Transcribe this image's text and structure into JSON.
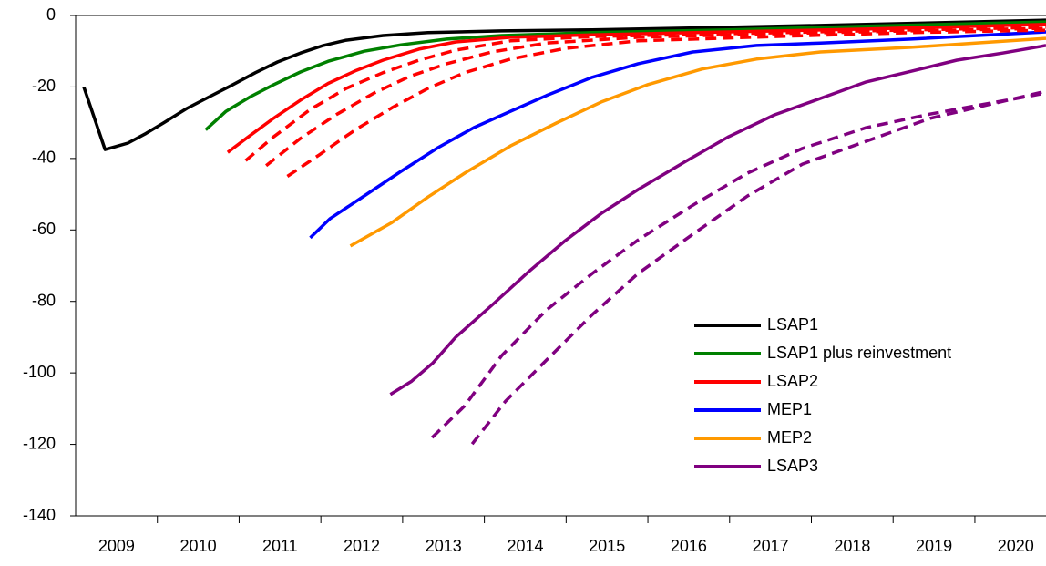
{
  "chart_data": {
    "type": "line",
    "xlim": [
      2009,
      2020.87
    ],
    "ylim": [
      -140,
      0
    ],
    "yticks": [
      -140,
      -120,
      -100,
      -80,
      -60,
      -40,
      -20,
      0
    ],
    "xticks": [
      {
        "value": 2009.5,
        "label": "2009"
      },
      {
        "value": 2010.5,
        "label": "2010"
      },
      {
        "value": 2011.5,
        "label": "2011"
      },
      {
        "value": 2012.5,
        "label": "2012"
      },
      {
        "value": 2013.5,
        "label": "2013"
      },
      {
        "value": 2014.5,
        "label": "2014"
      },
      {
        "value": 2015.5,
        "label": "2015"
      },
      {
        "value": 2016.5,
        "label": "2016"
      },
      {
        "value": 2017.5,
        "label": "2017"
      },
      {
        "value": 2018.5,
        "label": "2018"
      },
      {
        "value": 2019.5,
        "label": "2019"
      },
      {
        "value": 2020.5,
        "label": "2020"
      }
    ],
    "grid": false,
    "legend": "lower right",
    "series": [
      {
        "name": "LSAP1",
        "color": "#000000",
        "x": [
          2009.1,
          2009.36,
          2009.64,
          2009.86,
          2010.08,
          2010.36,
          2010.64,
          2010.92,
          2011.2,
          2011.47,
          2011.75,
          2012.03,
          2012.31,
          2012.76,
          2013.31,
          2014.21,
          2015.32,
          2016.99,
          2018.67,
          2020.87
        ],
        "values": [
          -20,
          -37.5,
          -35.7,
          -33,
          -30,
          -26,
          -22.7,
          -19.4,
          -16,
          -13,
          -10.5,
          -8.4,
          -6.9,
          -5.6,
          -4.8,
          -4.3,
          -4,
          -3.3,
          -2.5,
          -1.3
        ]
      },
      {
        "name": "LSAP1 plus reinvestment",
        "color": "#008000",
        "x": [
          2010.59,
          2010.84,
          2011.14,
          2011.42,
          2011.75,
          2012.09,
          2012.53,
          2012.98,
          2013.54,
          2014.21,
          2015.32,
          2016.99,
          2018.67,
          2020.87
        ],
        "values": [
          -32,
          -26.8,
          -22.7,
          -19.4,
          -15.8,
          -12.8,
          -10,
          -8.2,
          -6.6,
          -5.6,
          -4.8,
          -4,
          -3,
          -1.8
        ]
      },
      {
        "name": "LSAP2",
        "color": "#ff0000",
        "x": [
          2010.86,
          2011.11,
          2011.42,
          2011.75,
          2012.09,
          2012.42,
          2012.76,
          2013.2,
          2013.65,
          2014.32,
          2015.32,
          2016.99,
          2018.67,
          2020.87
        ],
        "values": [
          -38.3,
          -34,
          -28.8,
          -23.7,
          -19,
          -15.5,
          -12.5,
          -9.4,
          -7.4,
          -6.1,
          -5.4,
          -4.6,
          -3.8,
          -2.5
        ]
      },
      {
        "name": "MEP1",
        "color": "#0000ff",
        "x": [
          2011.87,
          2012.11,
          2012.53,
          2012.98,
          2013.43,
          2013.87,
          2014.32,
          2014.76,
          2015.32,
          2015.88,
          2016.55,
          2017.33,
          2018.11,
          2019.22,
          2020.87
        ],
        "values": [
          -62.2,
          -56.9,
          -50.5,
          -43.6,
          -37,
          -31.4,
          -26.8,
          -22.4,
          -17.3,
          -13.5,
          -10.2,
          -8.4,
          -7.7,
          -6.6,
          -4.6
        ]
      },
      {
        "name": "MEP2",
        "color": "#ff9900",
        "x": [
          2012.36,
          2012.87,
          2013.31,
          2013.76,
          2014.32,
          2014.88,
          2015.43,
          2015.99,
          2016.66,
          2017.33,
          2018.11,
          2019.22,
          2020.87
        ],
        "values": [
          -64.5,
          -57.9,
          -50.8,
          -44.1,
          -36.5,
          -30.1,
          -24.2,
          -19.4,
          -15,
          -12.2,
          -10.2,
          -8.9,
          -6.4
        ]
      },
      {
        "name": "LSAP3",
        "color": "#800080",
        "x": [
          2012.85,
          2013.11,
          2013.37,
          2013.65,
          2014.09,
          2014.54,
          2014.99,
          2015.43,
          2015.88,
          2016.44,
          2016.99,
          2017.55,
          2018.11,
          2018.67,
          2019.22,
          2019.78,
          2020.34,
          2020.87
        ],
        "values": [
          -106,
          -102.3,
          -97.2,
          -90,
          -81.1,
          -71.7,
          -63,
          -55.4,
          -48.7,
          -41.1,
          -33.9,
          -27.8,
          -23.2,
          -18.6,
          -15.6,
          -12.5,
          -10.5,
          -8.4
        ]
      },
      {
        "color": "#ff0000",
        "dashed": true,
        "x": [
          2011.08,
          2011.42,
          2011.87,
          2012.31,
          2012.76,
          2013.2,
          2013.65,
          2014.32,
          2015.32,
          2016.99,
          2018.67,
          2020.87
        ],
        "values": [
          -40.6,
          -34,
          -26.3,
          -20.4,
          -16,
          -12.5,
          -9.7,
          -7.1,
          -5.9,
          -5.1,
          -4.3,
          -3.3
        ]
      },
      {
        "color": "#ff0000",
        "dashed": true,
        "x": [
          2011.33,
          2011.75,
          2012.2,
          2012.65,
          2013.09,
          2013.54,
          2014.09,
          2014.76,
          2015.88,
          2017.55,
          2019.22,
          2020.87
        ],
        "values": [
          -42,
          -34.4,
          -27.6,
          -21.7,
          -17,
          -13.5,
          -10.2,
          -7.7,
          -6.1,
          -5.1,
          -4.3,
          -3.6
        ]
      },
      {
        "color": "#ff0000",
        "dashed": true,
        "x": [
          2011.59,
          2011.98,
          2012.42,
          2012.87,
          2013.31,
          2013.76,
          2014.32,
          2014.99,
          2015.88,
          2017.55,
          2019.22,
          2020.87
        ],
        "values": [
          -45,
          -39,
          -32,
          -25.8,
          -20.4,
          -16,
          -12.2,
          -9.2,
          -7.1,
          -5.9,
          -4.8,
          -4.1
        ]
      },
      {
        "color": "#800080",
        "dashed": true,
        "x": [
          2013.36,
          2013.76,
          2014.21,
          2014.76,
          2015.32,
          2015.88,
          2016.55,
          2017.22,
          2017.89,
          2018.67,
          2019.45,
          2020.87
        ],
        "values": [
          -118.1,
          -109.2,
          -95.2,
          -82.4,
          -72.2,
          -62.8,
          -53.1,
          -44.1,
          -37.2,
          -31.4,
          -27.6,
          -21.7
        ]
      },
      {
        "color": "#800080",
        "dashed": true,
        "x": [
          2013.85,
          2014.26,
          2014.76,
          2015.32,
          2015.88,
          2016.55,
          2017.22,
          2017.89,
          2018.67,
          2019.45,
          2020.87
        ],
        "values": [
          -119.9,
          -107.9,
          -96.4,
          -83.7,
          -72.2,
          -61.2,
          -50.5,
          -41.6,
          -35.2,
          -28.8,
          -21.2
        ]
      }
    ]
  }
}
